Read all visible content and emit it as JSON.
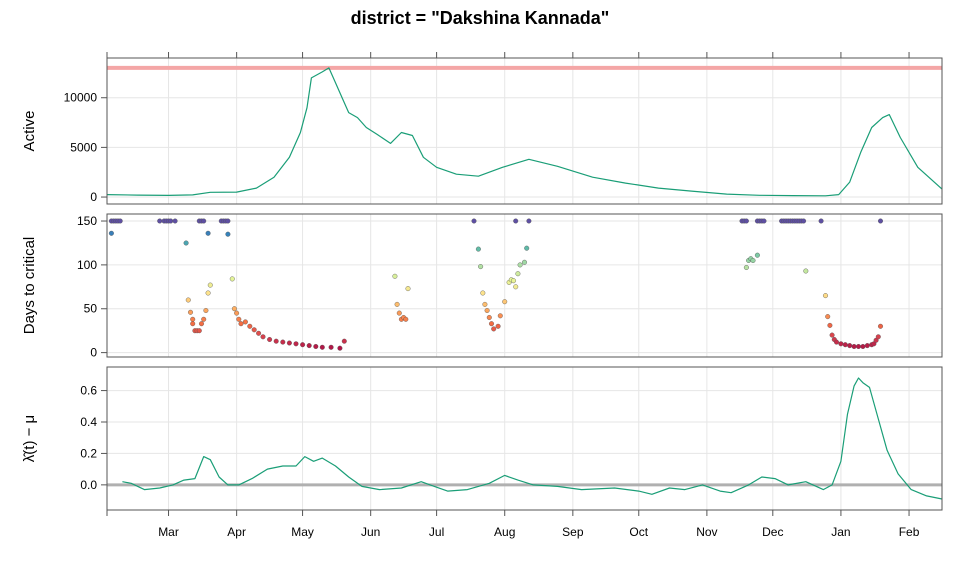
{
  "chart_data": {
    "type": "line",
    "title": "district = \"Dakshina Kannada\"",
    "x_axis": {
      "month_labels": [
        "Mar",
        "Apr",
        "May",
        "Jun",
        "Jul",
        "Aug",
        "Sep",
        "Oct",
        "Nov",
        "Dec",
        "Jan",
        "Feb"
      ],
      "range": [
        "2021-02-01",
        "2022-02-16"
      ]
    },
    "grid": true,
    "colors": {
      "line": "#1a9e77",
      "threshold": "#f4a6a6",
      "zero_line": "#b0b0b0",
      "frame": "#555555",
      "grid": "#e6e6e6"
    },
    "panels": [
      {
        "id": "active",
        "ylabel": "Active",
        "yticks": [
          "0",
          "5000",
          "10000"
        ],
        "ylim": [
          -700,
          14000
        ],
        "threshold": 13000,
        "series": [
          {
            "x": "2021-02-01",
            "y": 250
          },
          {
            "x": "2021-02-15",
            "y": 200
          },
          {
            "x": "2021-03-01",
            "y": 170
          },
          {
            "x": "2021-03-12",
            "y": 220
          },
          {
            "x": "2021-03-20",
            "y": 480
          },
          {
            "x": "2021-04-01",
            "y": 500
          },
          {
            "x": "2021-04-10",
            "y": 900
          },
          {
            "x": "2021-04-18",
            "y": 2000
          },
          {
            "x": "2021-04-25",
            "y": 4000
          },
          {
            "x": "2021-04-30",
            "y": 6500
          },
          {
            "x": "2021-05-03",
            "y": 9000
          },
          {
            "x": "2021-05-05",
            "y": 12000
          },
          {
            "x": "2021-05-10",
            "y": 12600
          },
          {
            "x": "2021-05-13",
            "y": 13000
          },
          {
            "x": "2021-05-16",
            "y": 11500
          },
          {
            "x": "2021-05-19",
            "y": 10000
          },
          {
            "x": "2021-05-22",
            "y": 8500
          },
          {
            "x": "2021-05-26",
            "y": 8000
          },
          {
            "x": "2021-05-30",
            "y": 7000
          },
          {
            "x": "2021-06-04",
            "y": 6300
          },
          {
            "x": "2021-06-10",
            "y": 5400
          },
          {
            "x": "2021-06-15",
            "y": 6500
          },
          {
            "x": "2021-06-20",
            "y": 6200
          },
          {
            "x": "2021-06-25",
            "y": 4000
          },
          {
            "x": "2021-07-01",
            "y": 3000
          },
          {
            "x": "2021-07-10",
            "y": 2300
          },
          {
            "x": "2021-07-20",
            "y": 2100
          },
          {
            "x": "2021-07-31",
            "y": 3000
          },
          {
            "x": "2021-08-12",
            "y": 3800
          },
          {
            "x": "2021-08-25",
            "y": 3100
          },
          {
            "x": "2021-09-10",
            "y": 2000
          },
          {
            "x": "2021-09-25",
            "y": 1400
          },
          {
            "x": "2021-10-10",
            "y": 900
          },
          {
            "x": "2021-10-25",
            "y": 600
          },
          {
            "x": "2021-11-10",
            "y": 300
          },
          {
            "x": "2021-11-25",
            "y": 180
          },
          {
            "x": "2021-12-10",
            "y": 150
          },
          {
            "x": "2021-12-25",
            "y": 130
          },
          {
            "x": "2021-12-31",
            "y": 250
          },
          {
            "x": "2022-01-05",
            "y": 1500
          },
          {
            "x": "2022-01-10",
            "y": 4500
          },
          {
            "x": "2022-01-15",
            "y": 7000
          },
          {
            "x": "2022-01-20",
            "y": 8000
          },
          {
            "x": "2022-01-23",
            "y": 8300
          },
          {
            "x": "2022-01-28",
            "y": 6000
          },
          {
            "x": "2022-02-05",
            "y": 3000
          },
          {
            "x": "2022-02-16",
            "y": 800
          }
        ]
      },
      {
        "id": "days_to_critical",
        "ylabel": "Days to critical",
        "yticks": [
          "0",
          "50",
          "100",
          "150"
        ],
        "ylim": [
          -5,
          158
        ],
        "point_color_scale": "Spectral (low = dark red, high = dark blue)",
        "points": [
          {
            "x": "2021-02-03",
            "y": 150
          },
          {
            "x": "2021-02-04",
            "y": 150
          },
          {
            "x": "2021-02-05",
            "y": 150
          },
          {
            "x": "2021-02-06",
            "y": 150
          },
          {
            "x": "2021-02-07",
            "y": 150
          },
          {
            "x": "2021-02-03",
            "y": 136
          },
          {
            "x": "2021-02-25",
            "y": 150
          },
          {
            "x": "2021-02-27",
            "y": 150
          },
          {
            "x": "2021-02-28",
            "y": 150
          },
          {
            "x": "2021-03-01",
            "y": 150
          },
          {
            "x": "2021-03-02",
            "y": 150
          },
          {
            "x": "2021-03-04",
            "y": 150
          },
          {
            "x": "2021-03-15",
            "y": 150
          },
          {
            "x": "2021-03-16",
            "y": 150
          },
          {
            "x": "2021-03-17",
            "y": 150
          },
          {
            "x": "2021-03-25",
            "y": 150
          },
          {
            "x": "2021-03-26",
            "y": 150
          },
          {
            "x": "2021-03-27",
            "y": 150
          },
          {
            "x": "2021-03-28",
            "y": 150
          },
          {
            "x": "2021-03-09",
            "y": 125
          },
          {
            "x": "2021-03-19",
            "y": 136
          },
          {
            "x": "2021-03-28",
            "y": 135
          },
          {
            "x": "2021-03-10",
            "y": 60
          },
          {
            "x": "2021-03-11",
            "y": 46
          },
          {
            "x": "2021-03-12",
            "y": 38
          },
          {
            "x": "2021-03-12",
            "y": 33
          },
          {
            "x": "2021-03-13",
            "y": 25
          },
          {
            "x": "2021-03-14",
            "y": 25
          },
          {
            "x": "2021-03-15",
            "y": 25
          },
          {
            "x": "2021-03-16",
            "y": 33
          },
          {
            "x": "2021-03-17",
            "y": 38
          },
          {
            "x": "2021-03-18",
            "y": 48
          },
          {
            "x": "2021-03-19",
            "y": 68
          },
          {
            "x": "2021-03-20",
            "y": 77
          },
          {
            "x": "2021-03-30",
            "y": 84
          },
          {
            "x": "2021-03-31",
            "y": 50
          },
          {
            "x": "2021-04-01",
            "y": 45
          },
          {
            "x": "2021-04-02",
            "y": 38
          },
          {
            "x": "2021-04-03",
            "y": 33
          },
          {
            "x": "2021-04-05",
            "y": 35
          },
          {
            "x": "2021-04-07",
            "y": 30
          },
          {
            "x": "2021-04-09",
            "y": 26
          },
          {
            "x": "2021-04-11",
            "y": 22
          },
          {
            "x": "2021-04-13",
            "y": 18
          },
          {
            "x": "2021-04-16",
            "y": 15
          },
          {
            "x": "2021-04-19",
            "y": 13
          },
          {
            "x": "2021-04-22",
            "y": 12
          },
          {
            "x": "2021-04-25",
            "y": 11
          },
          {
            "x": "2021-04-28",
            "y": 10
          },
          {
            "x": "2021-05-01",
            "y": 9
          },
          {
            "x": "2021-05-04",
            "y": 8
          },
          {
            "x": "2021-05-07",
            "y": 7
          },
          {
            "x": "2021-05-10",
            "y": 6
          },
          {
            "x": "2021-05-14",
            "y": 6
          },
          {
            "x": "2021-05-18",
            "y": 5
          },
          {
            "x": "2021-05-20",
            "y": 13
          },
          {
            "x": "2021-06-12",
            "y": 87
          },
          {
            "x": "2021-06-13",
            "y": 55
          },
          {
            "x": "2021-06-14",
            "y": 45
          },
          {
            "x": "2021-06-15",
            "y": 38
          },
          {
            "x": "2021-06-16",
            "y": 40
          },
          {
            "x": "2021-06-17",
            "y": 38
          },
          {
            "x": "2021-06-18",
            "y": 73
          },
          {
            "x": "2021-07-18",
            "y": 150
          },
          {
            "x": "2021-07-20",
            "y": 118
          },
          {
            "x": "2021-07-21",
            "y": 98
          },
          {
            "x": "2021-07-22",
            "y": 68
          },
          {
            "x": "2021-07-23",
            "y": 55
          },
          {
            "x": "2021-07-24",
            "y": 48
          },
          {
            "x": "2021-07-25",
            "y": 40
          },
          {
            "x": "2021-07-26",
            "y": 33
          },
          {
            "x": "2021-07-27",
            "y": 27
          },
          {
            "x": "2021-07-29",
            "y": 30
          },
          {
            "x": "2021-07-30",
            "y": 42
          },
          {
            "x": "2021-08-01",
            "y": 58
          },
          {
            "x": "2021-08-03",
            "y": 80
          },
          {
            "x": "2021-08-04",
            "y": 83
          },
          {
            "x": "2021-08-05",
            "y": 82
          },
          {
            "x": "2021-08-06",
            "y": 75
          },
          {
            "x": "2021-08-07",
            "y": 90
          },
          {
            "x": "2021-08-08",
            "y": 100
          },
          {
            "x": "2021-08-10",
            "y": 103
          },
          {
            "x": "2021-08-11",
            "y": 119
          },
          {
            "x": "2021-08-06",
            "y": 150
          },
          {
            "x": "2021-08-12",
            "y": 150
          },
          {
            "x": "2021-11-17",
            "y": 150
          },
          {
            "x": "2021-11-18",
            "y": 150
          },
          {
            "x": "2021-11-19",
            "y": 150
          },
          {
            "x": "2021-11-24",
            "y": 150
          },
          {
            "x": "2021-11-25",
            "y": 150
          },
          {
            "x": "2021-11-26",
            "y": 150
          },
          {
            "x": "2021-11-27",
            "y": 150
          },
          {
            "x": "2021-12-05",
            "y": 150
          },
          {
            "x": "2021-12-06",
            "y": 150
          },
          {
            "x": "2021-12-07",
            "y": 150
          },
          {
            "x": "2021-12-08",
            "y": 150
          },
          {
            "x": "2021-12-09",
            "y": 150
          },
          {
            "x": "2021-12-10",
            "y": 150
          },
          {
            "x": "2021-12-11",
            "y": 150
          },
          {
            "x": "2021-12-12",
            "y": 150
          },
          {
            "x": "2021-12-13",
            "y": 150
          },
          {
            "x": "2021-12-14",
            "y": 150
          },
          {
            "x": "2021-12-15",
            "y": 150
          },
          {
            "x": "2021-12-23",
            "y": 150
          },
          {
            "x": "2022-01-19",
            "y": 150
          },
          {
            "x": "2021-11-19",
            "y": 97
          },
          {
            "x": "2021-11-20",
            "y": 105
          },
          {
            "x": "2021-11-21",
            "y": 107
          },
          {
            "x": "2021-11-22",
            "y": 105
          },
          {
            "x": "2021-11-24",
            "y": 111
          },
          {
            "x": "2021-12-16",
            "y": 93
          },
          {
            "x": "2021-12-25",
            "y": 65
          },
          {
            "x": "2021-12-26",
            "y": 41
          },
          {
            "x": "2021-12-27",
            "y": 31
          },
          {
            "x": "2021-12-28",
            "y": 20
          },
          {
            "x": "2021-12-29",
            "y": 15
          },
          {
            "x": "2021-12-30",
            "y": 12
          },
          {
            "x": "2022-01-01",
            "y": 10
          },
          {
            "x": "2022-01-03",
            "y": 9
          },
          {
            "x": "2022-01-05",
            "y": 8
          },
          {
            "x": "2022-01-07",
            "y": 7
          },
          {
            "x": "2022-01-09",
            "y": 7
          },
          {
            "x": "2022-01-11",
            "y": 7
          },
          {
            "x": "2022-01-13",
            "y": 8
          },
          {
            "x": "2022-01-15",
            "y": 9
          },
          {
            "x": "2022-01-16",
            "y": 10
          },
          {
            "x": "2022-01-17",
            "y": 14
          },
          {
            "x": "2022-01-18",
            "y": 18
          },
          {
            "x": "2022-01-19",
            "y": 30
          }
        ]
      },
      {
        "id": "lambda",
        "ylabel": "λ̂(t) − μ",
        "yticks": [
          "0.0",
          "0.2",
          "0.4",
          "0.6"
        ],
        "ylim": [
          -0.16,
          0.75
        ],
        "reference_line": 0,
        "series": [
          {
            "x": "2021-02-08",
            "y": 0.02
          },
          {
            "x": "2021-02-12",
            "y": 0.01
          },
          {
            "x": "2021-02-18",
            "y": -0.03
          },
          {
            "x": "2021-02-25",
            "y": -0.02
          },
          {
            "x": "2021-03-03",
            "y": 0.0
          },
          {
            "x": "2021-03-08",
            "y": 0.03
          },
          {
            "x": "2021-03-13",
            "y": 0.04
          },
          {
            "x": "2021-03-17",
            "y": 0.18
          },
          {
            "x": "2021-03-20",
            "y": 0.16
          },
          {
            "x": "2021-03-24",
            "y": 0.05
          },
          {
            "x": "2021-03-28",
            "y": 0.0
          },
          {
            "x": "2021-04-02",
            "y": 0.0
          },
          {
            "x": "2021-04-08",
            "y": 0.04
          },
          {
            "x": "2021-04-15",
            "y": 0.1
          },
          {
            "x": "2021-04-22",
            "y": 0.12
          },
          {
            "x": "2021-04-28",
            "y": 0.12
          },
          {
            "x": "2021-05-02",
            "y": 0.18
          },
          {
            "x": "2021-05-06",
            "y": 0.15
          },
          {
            "x": "2021-05-10",
            "y": 0.17
          },
          {
            "x": "2021-05-16",
            "y": 0.12
          },
          {
            "x": "2021-05-22",
            "y": 0.05
          },
          {
            "x": "2021-05-28",
            "y": -0.01
          },
          {
            "x": "2021-06-05",
            "y": -0.03
          },
          {
            "x": "2021-06-15",
            "y": -0.02
          },
          {
            "x": "2021-06-24",
            "y": 0.02
          },
          {
            "x": "2021-06-30",
            "y": -0.01
          },
          {
            "x": "2021-07-06",
            "y": -0.04
          },
          {
            "x": "2021-07-15",
            "y": -0.03
          },
          {
            "x": "2021-07-25",
            "y": 0.01
          },
          {
            "x": "2021-08-01",
            "y": 0.06
          },
          {
            "x": "2021-08-07",
            "y": 0.03
          },
          {
            "x": "2021-08-14",
            "y": 0.0
          },
          {
            "x": "2021-08-25",
            "y": -0.01
          },
          {
            "x": "2021-09-05",
            "y": -0.03
          },
          {
            "x": "2021-09-20",
            "y": -0.02
          },
          {
            "x": "2021-10-01",
            "y": -0.04
          },
          {
            "x": "2021-10-07",
            "y": -0.06
          },
          {
            "x": "2021-10-15",
            "y": -0.02
          },
          {
            "x": "2021-10-22",
            "y": -0.03
          },
          {
            "x": "2021-10-30",
            "y": 0.0
          },
          {
            "x": "2021-11-07",
            "y": -0.04
          },
          {
            "x": "2021-11-12",
            "y": -0.05
          },
          {
            "x": "2021-11-20",
            "y": 0.0
          },
          {
            "x": "2021-11-26",
            "y": 0.05
          },
          {
            "x": "2021-12-02",
            "y": 0.04
          },
          {
            "x": "2021-12-08",
            "y": 0.0
          },
          {
            "x": "2021-12-16",
            "y": 0.02
          },
          {
            "x": "2021-12-24",
            "y": -0.03
          },
          {
            "x": "2021-12-28",
            "y": 0.0
          },
          {
            "x": "2022-01-01",
            "y": 0.15
          },
          {
            "x": "2022-01-04",
            "y": 0.45
          },
          {
            "x": "2022-01-07",
            "y": 0.63
          },
          {
            "x": "2022-01-09",
            "y": 0.68
          },
          {
            "x": "2022-01-11",
            "y": 0.65
          },
          {
            "x": "2022-01-14",
            "y": 0.62
          },
          {
            "x": "2022-01-18",
            "y": 0.42
          },
          {
            "x": "2022-01-22",
            "y": 0.22
          },
          {
            "x": "2022-01-27",
            "y": 0.07
          },
          {
            "x": "2022-02-02",
            "y": -0.03
          },
          {
            "x": "2022-02-09",
            "y": -0.07
          },
          {
            "x": "2022-02-16",
            "y": -0.09
          }
        ]
      }
    ]
  }
}
